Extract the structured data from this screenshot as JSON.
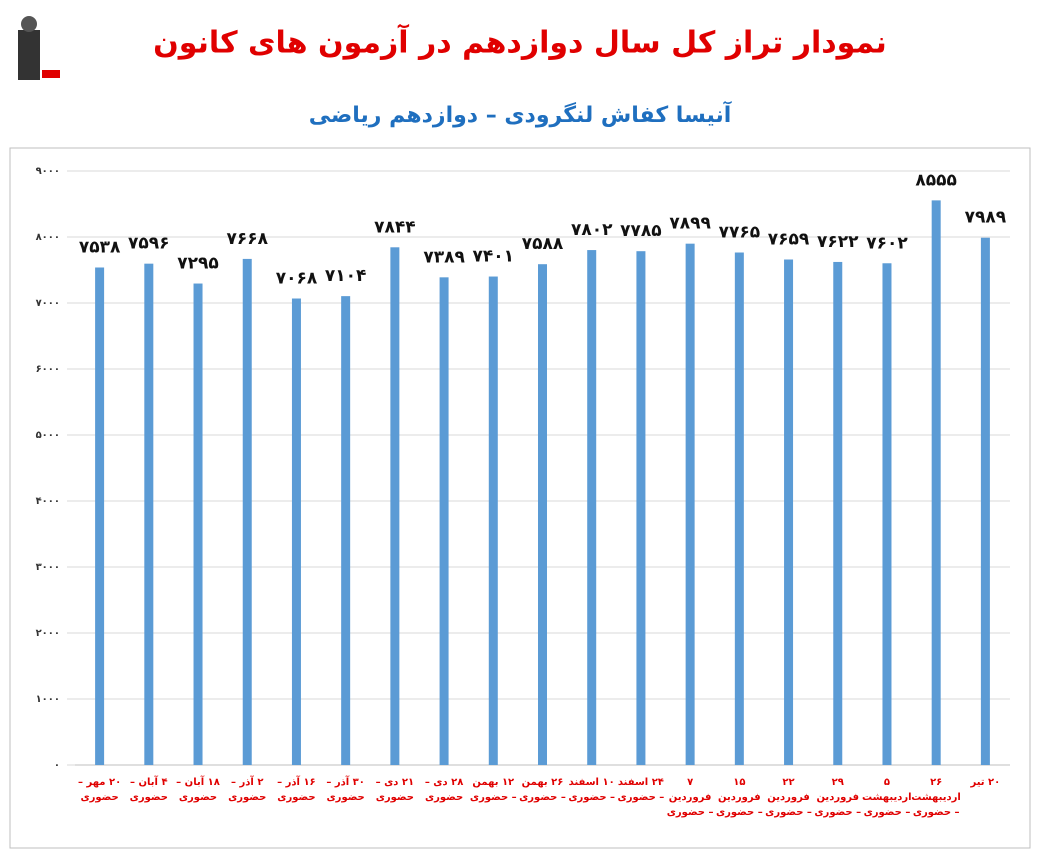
{
  "chart_data": {
    "type": "bar",
    "title": "نمودار تراز کل سال دوازدهم در آزمون های کانون",
    "subtitle": "آنیسا کفاش لنگرودی – دوازدهم ریاضی",
    "categories": [
      "۲۰ مهر – حضوری",
      "۴ آبان – حضوری",
      "۱۸ آبان – حضوری",
      "۲ آذر – حضوری",
      "۱۶ آذر – حضوری",
      "۳۰ آذر – حضوری",
      "۲۱ دی – حضوری",
      "۲۸ دی – حضوری",
      "۱۲ بهمن – حضوری",
      "۲۶ بهمن – حضوری",
      "۱۰ اسفند – حضوری",
      "۲۴ اسفند – حضوری",
      "۷ فروردین – حضوری",
      "۱۵ فروردین – حضوری",
      "۲۲ فروردین – حضوری",
      "۲۹ فروردین – حضوری",
      "۵ اردیبهشت – حضوری",
      "۲۶ اردیبهشت – حضوری",
      "۲۰ تیر"
    ],
    "values": [
      7538,
      7596,
      7295,
      7668,
      7068,
      7104,
      7844,
      7389,
      7401,
      7588,
      7802,
      7785,
      7899,
      7765,
      7659,
      7622,
      7602,
      8555,
      7989
    ],
    "value_labels": [
      "۷۵۳۸",
      "۷۵۹۶",
      "۷۲۹۵",
      "۷۶۶۸",
      "۷۰۶۸",
      "۷۱۰۴",
      "۷۸۴۴",
      "۷۳۸۹",
      "۷۴۰۱",
      "۷۵۸۸",
      "۷۸۰۲",
      "۷۷۸۵",
      "۷۸۹۹",
      "۷۷۶۵",
      "۷۶۵۹",
      "۷۶۲۲",
      "۷۶۰۲",
      "۸۵۵۵",
      "۷۹۸۹"
    ],
    "color": "#5b9bd5",
    "ylim": [
      0,
      9000
    ],
    "yticks": [
      {
        "value": 0,
        "label": "۰"
      },
      {
        "value": 1000,
        "label": "۱۰۰۰"
      },
      {
        "value": 2000,
        "label": "۲۰۰۰"
      },
      {
        "value": 3000,
        "label": "۳۰۰۰"
      },
      {
        "value": 4000,
        "label": "۴۰۰۰"
      },
      {
        "value": 5000,
        "label": "۵۰۰۰"
      },
      {
        "value": 6000,
        "label": "۶۰۰۰"
      },
      {
        "value": 7000,
        "label": "۷۰۰۰"
      },
      {
        "value": 8000,
        "label": "۸۰۰۰"
      },
      {
        "value": 9000,
        "label": "۹۰۰۰"
      }
    ],
    "grid": true
  }
}
